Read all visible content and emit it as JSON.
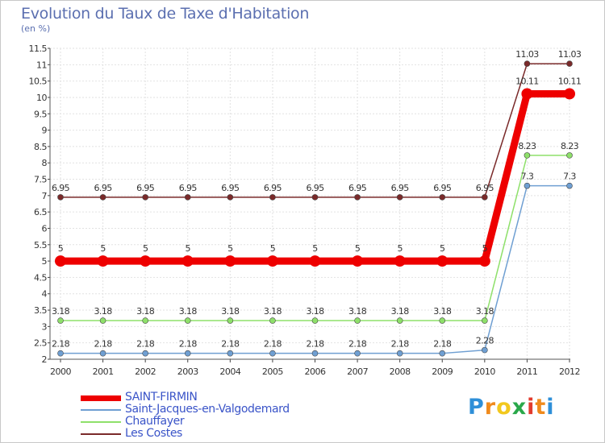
{
  "chart_data": {
    "type": "line",
    "title": "Evolution du Taux de Taxe d'Habitation",
    "subtitle": "(en %)",
    "xlabel": "",
    "ylabel": "",
    "categories": [
      "2000",
      "2001",
      "2002",
      "2003",
      "2004",
      "2005",
      "2006",
      "2007",
      "2008",
      "2009",
      "2010",
      "2011",
      "2012"
    ],
    "ylim": [
      2,
      11.5
    ],
    "yticks": [
      "2",
      "2.5",
      "3",
      "3.5",
      "4",
      "4.5",
      "5",
      "5.5",
      "6",
      "6.5",
      "7",
      "7.5",
      "8",
      "8.5",
      "9",
      "9.5",
      "10",
      "10.5",
      "11",
      "11.5"
    ],
    "grid": true,
    "series": [
      {
        "name": "Les Costes",
        "color": "#7a2a2a",
        "values": [
          6.95,
          6.95,
          6.95,
          6.95,
          6.95,
          6.95,
          6.95,
          6.95,
          6.95,
          6.95,
          6.95,
          11.03,
          11.03
        ],
        "labels": [
          "6.95",
          "6.95",
          "6.95",
          "6.95",
          "6.95",
          "6.95",
          "6.95",
          "6.95",
          "6.95",
          "6.95",
          "6.95",
          "11.03",
          "11.03"
        ]
      },
      {
        "name": "Chauffayer",
        "color": "#8ee06a",
        "values": [
          3.18,
          3.18,
          3.18,
          3.18,
          3.18,
          3.18,
          3.18,
          3.18,
          3.18,
          3.18,
          3.18,
          8.23,
          8.23
        ],
        "labels": [
          "3.18",
          "3.18",
          "3.18",
          "3.18",
          "3.18",
          "3.18",
          "3.18",
          "3.18",
          "3.18",
          "3.18",
          "3.18",
          "8.23",
          "8.23"
        ]
      },
      {
        "name": "Saint-Jacques-en-Valgodemard",
        "color": "#6f9fd2",
        "values": [
          2.18,
          2.18,
          2.18,
          2.18,
          2.18,
          2.18,
          2.18,
          2.18,
          2.18,
          2.18,
          2.28,
          7.3,
          7.3
        ],
        "labels": [
          "2.18",
          "2.18",
          "2.18",
          "2.18",
          "2.18",
          "2.18",
          "2.18",
          "2.18",
          "2.18",
          "2.18",
          "2.28",
          "7.3",
          "7.3"
        ]
      },
      {
        "name": "SAINT-FIRMIN",
        "color": "#ee0000",
        "values": [
          5,
          5,
          5,
          5,
          5,
          5,
          5,
          5,
          5,
          5,
          5,
          10.11,
          10.11
        ],
        "labels": [
          "5",
          "5",
          "5",
          "5",
          "5",
          "5",
          "5",
          "5",
          "5",
          "5",
          "5",
          "10.11",
          "10.11"
        ]
      }
    ],
    "legend_order": [
      "SAINT-FIRMIN",
      "Saint-Jacques-en-Valgodemard",
      "Chauffayer",
      "Les Costes"
    ]
  },
  "brand": {
    "letters": [
      "P",
      "r",
      "o",
      "x",
      "i",
      "t",
      "i"
    ],
    "colors": [
      "#2e8fd8",
      "#f08a1c",
      "#f2c81e",
      "#2aa84a",
      "#e23b2e",
      "#f08a1c",
      "#2e8fd8"
    ]
  }
}
